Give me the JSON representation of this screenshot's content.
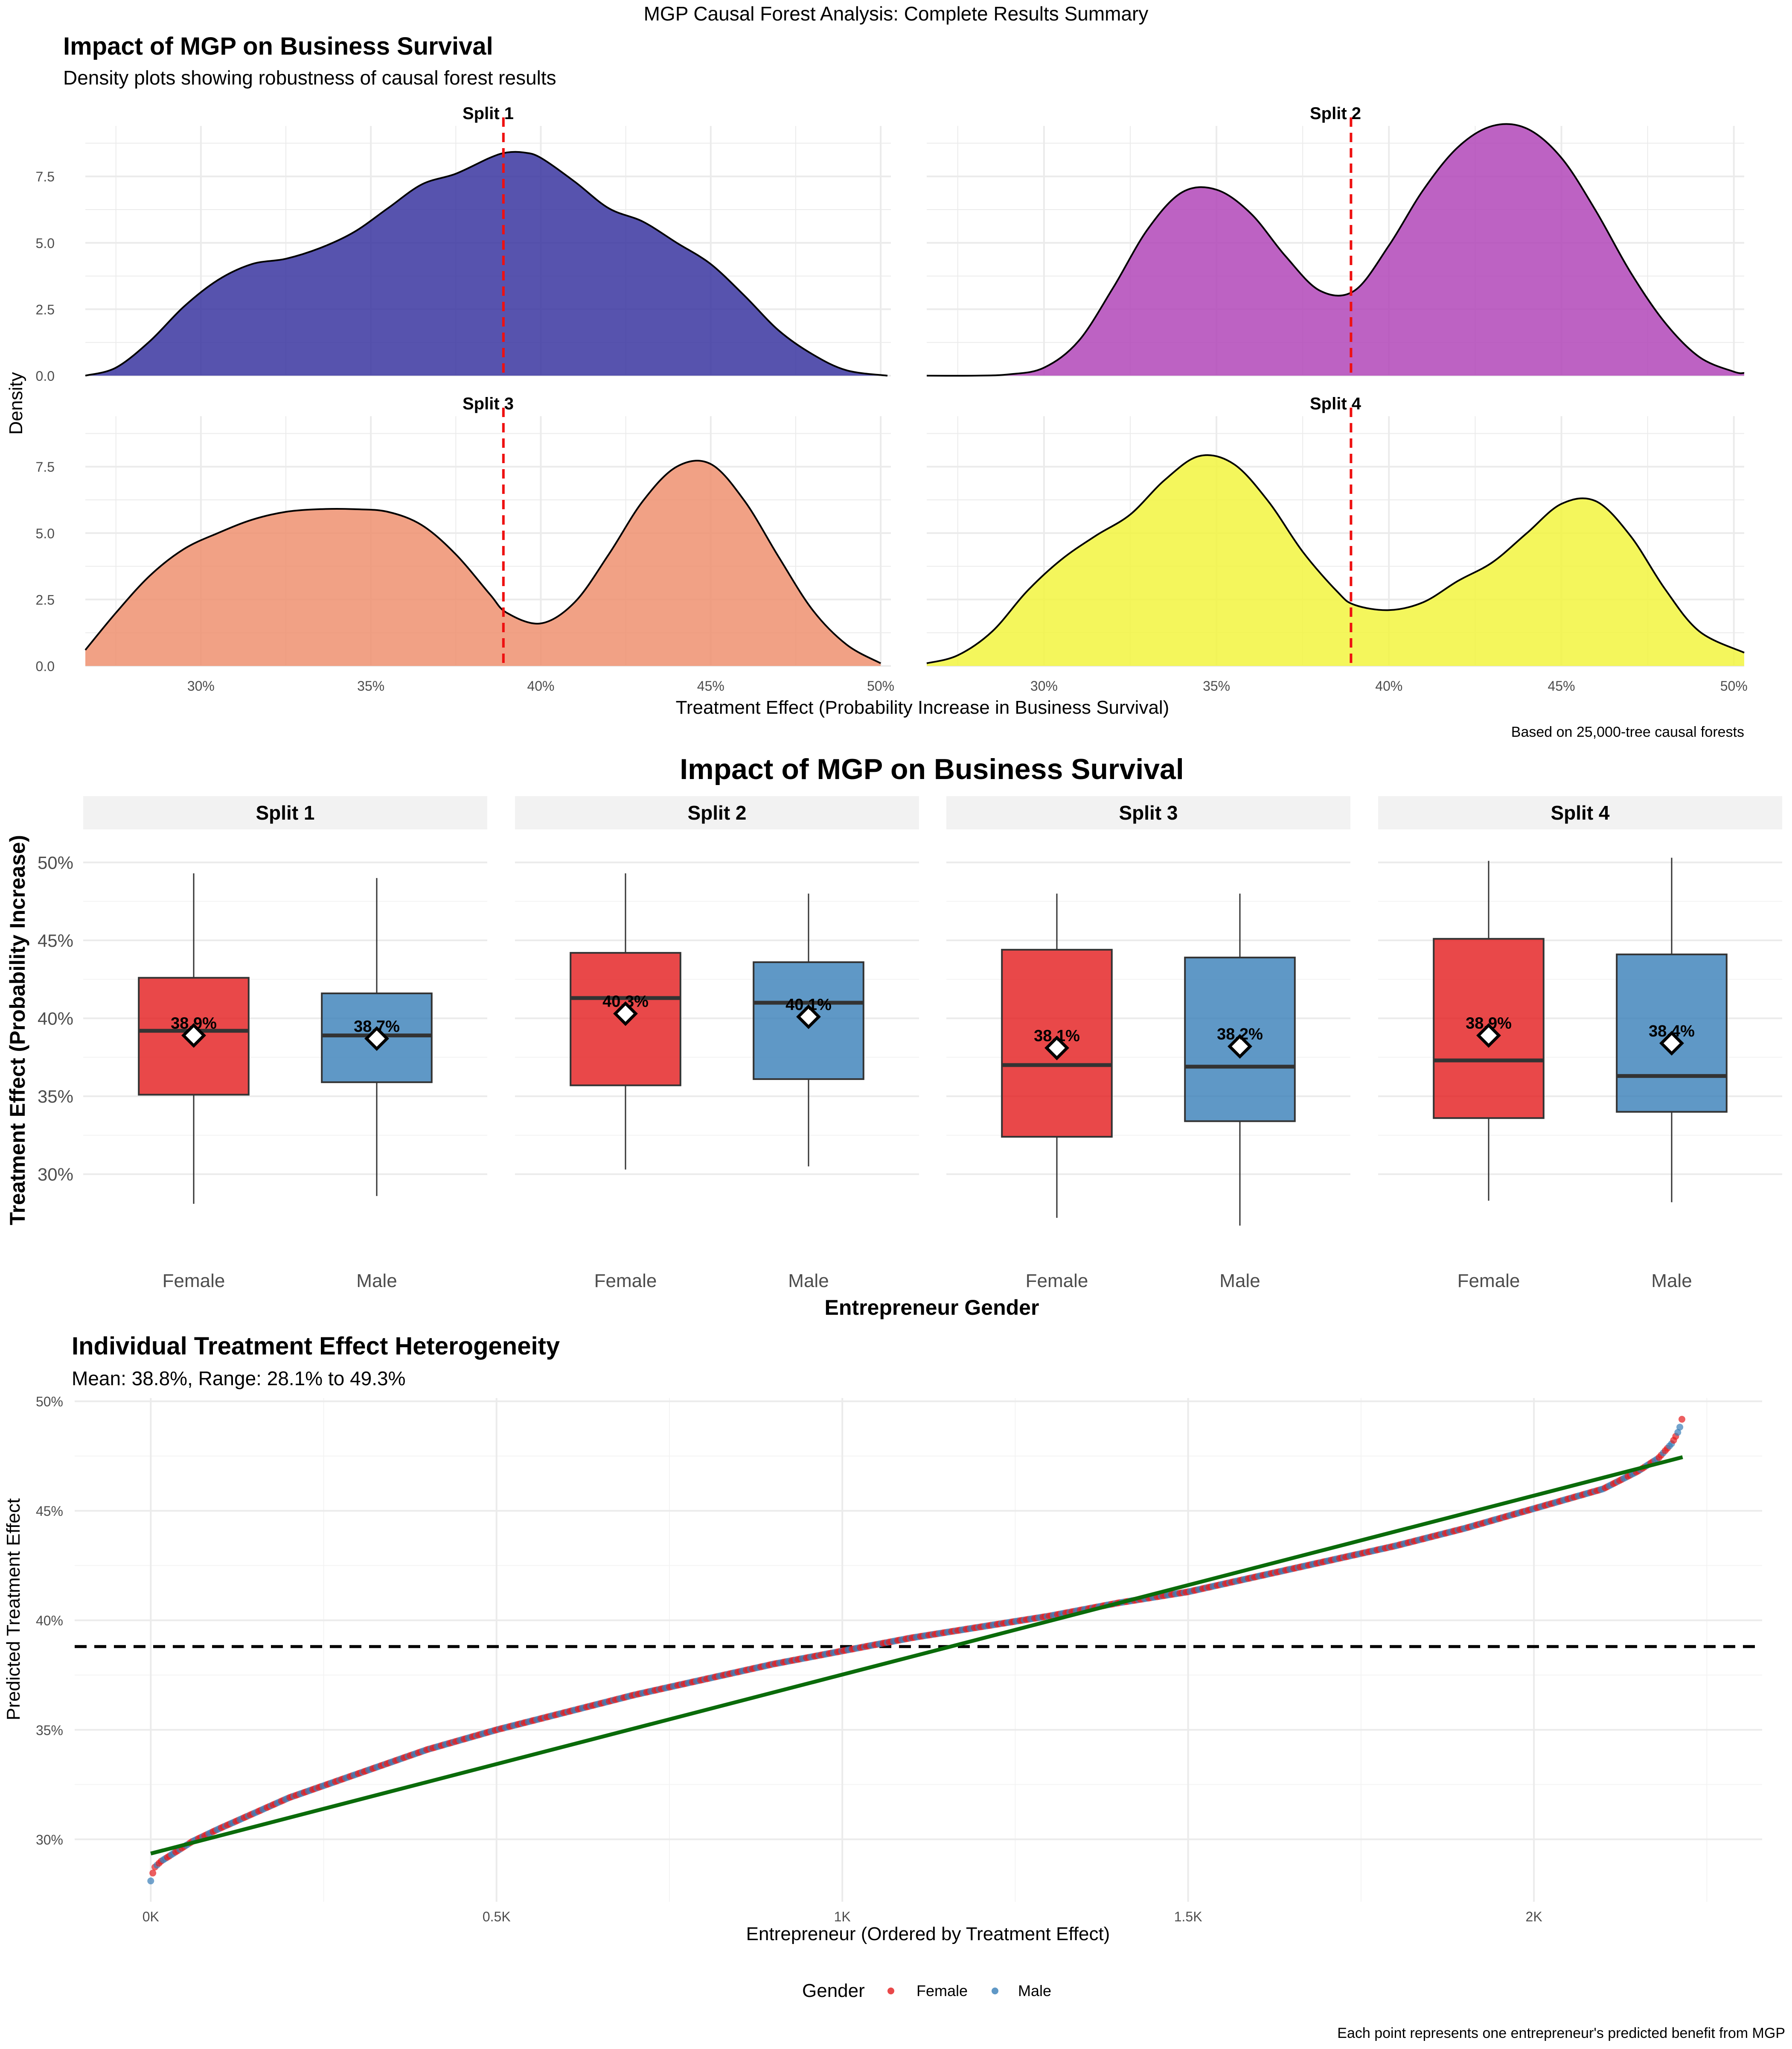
{
  "page_title": "MGP Causal Forest Analysis: Complete Results Summary",
  "colors": {
    "split1": "#3a35a0",
    "split2": "#b146b8",
    "split3": "#ef9070",
    "split4": "#f2f440",
    "female": "#e41a1c",
    "male": "#377eb8",
    "mean_line": "#ee1111",
    "trend_line": "#0a6b0a",
    "grid": "#ebebeb",
    "strip": "#f2f2f2"
  },
  "chart_data": [
    {
      "type": "area",
      "title": "Impact of MGP on Business Survival",
      "subtitle": "Density plots showing robustness of causal forest results",
      "xlabel": "Treatment Effect (Probability Increase in Business Survival)",
      "ylabel": "Density",
      "caption": "Based on 25,000-tree causal forests",
      "xlim": [
        0.266,
        0.503
      ],
      "ylim": [
        0,
        9.4
      ],
      "x_ticks": [
        {
          "value": 0.3,
          "label": "30%"
        },
        {
          "value": 0.35,
          "label": "35%"
        },
        {
          "value": 0.4,
          "label": "40%"
        },
        {
          "value": 0.45,
          "label": "45%"
        },
        {
          "value": 0.5,
          "label": "50%"
        }
      ],
      "y_ticks": [
        {
          "value": 0,
          "label": "0.0"
        },
        {
          "value": 2.5,
          "label": "2.5"
        },
        {
          "value": 5,
          "label": "5.0"
        },
        {
          "value": 7.5,
          "label": "7.5"
        }
      ],
      "reference_line_x": 0.389,
      "grid": true,
      "panels": [
        {
          "name": "Split 1",
          "color_key": "split1",
          "x": [
            0.266,
            0.275,
            0.285,
            0.295,
            0.305,
            0.315,
            0.325,
            0.335,
            0.345,
            0.355,
            0.365,
            0.375,
            0.385,
            0.39,
            0.395,
            0.4,
            0.41,
            0.42,
            0.43,
            0.44,
            0.45,
            0.46,
            0.47,
            0.48,
            0.49,
            0.502
          ],
          "y": [
            0,
            0.3,
            1.3,
            2.6,
            3.6,
            4.2,
            4.4,
            4.8,
            5.4,
            6.3,
            7.2,
            7.6,
            8.2,
            8.4,
            8.4,
            8.2,
            7.3,
            6.3,
            5.8,
            5.0,
            4.2,
            3.0,
            1.7,
            0.8,
            0.2,
            0
          ]
        },
        {
          "name": "Split 2",
          "color_key": "split2",
          "x": [
            0.266,
            0.28,
            0.29,
            0.3,
            0.31,
            0.32,
            0.33,
            0.34,
            0.35,
            0.36,
            0.37,
            0.38,
            0.39,
            0.4,
            0.41,
            0.42,
            0.43,
            0.44,
            0.45,
            0.46,
            0.47,
            0.48,
            0.49,
            0.5,
            0.503
          ],
          "y": [
            0,
            0,
            0.05,
            0.3,
            1.3,
            3.3,
            5.5,
            6.9,
            7.0,
            6.1,
            4.5,
            3.2,
            3.2,
            4.9,
            7.0,
            8.6,
            9.4,
            9.3,
            8.2,
            6.2,
            3.9,
            2.0,
            0.7,
            0.15,
            0.1
          ]
        },
        {
          "name": "Split 3",
          "color_key": "split3",
          "x": [
            0.266,
            0.275,
            0.285,
            0.295,
            0.305,
            0.315,
            0.325,
            0.335,
            0.345,
            0.355,
            0.365,
            0.375,
            0.385,
            0.39,
            0.4,
            0.41,
            0.42,
            0.43,
            0.44,
            0.45,
            0.46,
            0.47,
            0.48,
            0.49,
            0.5
          ],
          "y": [
            0.6,
            2.0,
            3.4,
            4.4,
            5.0,
            5.5,
            5.8,
            5.9,
            5.9,
            5.8,
            5.3,
            4.2,
            2.7,
            2.0,
            1.6,
            2.4,
            4.2,
            6.2,
            7.5,
            7.6,
            6.2,
            4.1,
            2.1,
            0.8,
            0.1
          ]
        },
        {
          "name": "Split 4",
          "color_key": "split4",
          "x": [
            0.266,
            0.275,
            0.285,
            0.295,
            0.305,
            0.315,
            0.325,
            0.335,
            0.345,
            0.355,
            0.365,
            0.375,
            0.385,
            0.39,
            0.4,
            0.41,
            0.42,
            0.43,
            0.44,
            0.45,
            0.46,
            0.47,
            0.48,
            0.49,
            0.503
          ],
          "y": [
            0.1,
            0.4,
            1.3,
            2.8,
            4.0,
            4.9,
            5.7,
            7.0,
            7.9,
            7.6,
            6.2,
            4.3,
            2.8,
            2.3,
            2.1,
            2.4,
            3.2,
            3.9,
            5.0,
            6.1,
            6.2,
            4.9,
            2.9,
            1.3,
            0.5
          ]
        }
      ]
    },
    {
      "type": "box",
      "title": "Impact of MGP on Business Survival",
      "xlabel": "Entrepreneur Gender",
      "ylabel": "Treatment Effect (Probability Increase)",
      "categories": [
        "Female",
        "Male"
      ],
      "ylim": [
        0.255,
        0.522
      ],
      "y_ticks": [
        {
          "value": 0.3,
          "label": "30%"
        },
        {
          "value": 0.35,
          "label": "35%"
        },
        {
          "value": 0.4,
          "label": "40%"
        },
        {
          "value": 0.45,
          "label": "45%"
        },
        {
          "value": 0.5,
          "label": "50%"
        }
      ],
      "grid": true,
      "panels": [
        {
          "name": "Split 1",
          "boxes": [
            {
              "category": "Female",
              "min": 0.281,
              "q1": 0.351,
              "median": 0.392,
              "q3": 0.426,
              "max": 0.493,
              "mean": 0.389,
              "mean_label": "38.9%"
            },
            {
              "category": "Male",
              "min": 0.286,
              "q1": 0.359,
              "median": 0.389,
              "q3": 0.416,
              "max": 0.49,
              "mean": 0.387,
              "mean_label": "38.7%"
            }
          ]
        },
        {
          "name": "Split 2",
          "boxes": [
            {
              "category": "Female",
              "min": 0.303,
              "q1": 0.357,
              "median": 0.413,
              "q3": 0.442,
              "max": 0.493,
              "mean": 0.403,
              "mean_label": "40.3%"
            },
            {
              "category": "Male",
              "min": 0.305,
              "q1": 0.361,
              "median": 0.41,
              "q3": 0.436,
              "max": 0.48,
              "mean": 0.401,
              "mean_label": "40.1%"
            }
          ]
        },
        {
          "name": "Split 3",
          "boxes": [
            {
              "category": "Female",
              "min": 0.272,
              "q1": 0.324,
              "median": 0.37,
              "q3": 0.444,
              "max": 0.48,
              "mean": 0.381,
              "mean_label": "38.1%"
            },
            {
              "category": "Male",
              "min": 0.267,
              "q1": 0.334,
              "median": 0.369,
              "q3": 0.439,
              "max": 0.48,
              "mean": 0.382,
              "mean_label": "38.2%"
            }
          ]
        },
        {
          "name": "Split 4",
          "boxes": [
            {
              "category": "Female",
              "min": 0.283,
              "q1": 0.336,
              "median": 0.373,
              "q3": 0.451,
              "max": 0.501,
              "mean": 0.389,
              "mean_label": "38.9%"
            },
            {
              "category": "Male",
              "min": 0.282,
              "q1": 0.34,
              "median": 0.363,
              "q3": 0.441,
              "max": 0.503,
              "mean": 0.384,
              "mean_label": "38.4%"
            }
          ]
        }
      ]
    },
    {
      "type": "scatter",
      "title": "Individual Treatment Effect Heterogeneity",
      "subtitle": "Mean: 38.8%, Range: 28.1% to 49.3%",
      "xlabel": "Entrepreneur (Ordered by Treatment Effect)",
      "ylabel": "Predicted Treatment Effect",
      "caption": "Each point represents one entrepreneur's predicted benefit from MGP",
      "legend": {
        "title": "Gender",
        "position": "bottom",
        "items": [
          "Female",
          "Male"
        ]
      },
      "xlim": [
        -110,
        2330
      ],
      "ylim": [
        0.2715,
        0.5015
      ],
      "x_ticks": [
        {
          "value": 0,
          "label": "0K"
        },
        {
          "value": 500,
          "label": "0.5K"
        },
        {
          "value": 1000,
          "label": "1K"
        },
        {
          "value": 1500,
          "label": "1.5K"
        },
        {
          "value": 2000,
          "label": "2K"
        }
      ],
      "y_ticks": [
        {
          "value": 0.3,
          "label": "30%"
        },
        {
          "value": 0.35,
          "label": "35%"
        },
        {
          "value": 0.4,
          "label": "40%"
        },
        {
          "value": 0.45,
          "label": "45%"
        },
        {
          "value": 0.5,
          "label": "50%"
        }
      ],
      "mean_line_y": 0.388,
      "grid": true,
      "series_curve": {
        "x": [
          0,
          5,
          15,
          30,
          60,
          100,
          200,
          300,
          400,
          500,
          600,
          700,
          800,
          900,
          1000,
          1100,
          1200,
          1300,
          1400,
          1500,
          1600,
          1700,
          1800,
          1900,
          2000,
          2100,
          2150,
          2180,
          2200,
          2210,
          2215
        ],
        "y": [
          0.281,
          0.287,
          0.29,
          0.293,
          0.299,
          0.305,
          0.319,
          0.33,
          0.341,
          0.35,
          0.358,
          0.366,
          0.373,
          0.38,
          0.386,
          0.392,
          0.397,
          0.402,
          0.408,
          0.413,
          0.42,
          0.427,
          0.434,
          0.442,
          0.451,
          0.46,
          0.468,
          0.474,
          0.481,
          0.487,
          0.493
        ]
      },
      "trend_line": {
        "x": [
          0,
          2215
        ],
        "y": [
          0.2935,
          0.4745
        ]
      }
    }
  ]
}
